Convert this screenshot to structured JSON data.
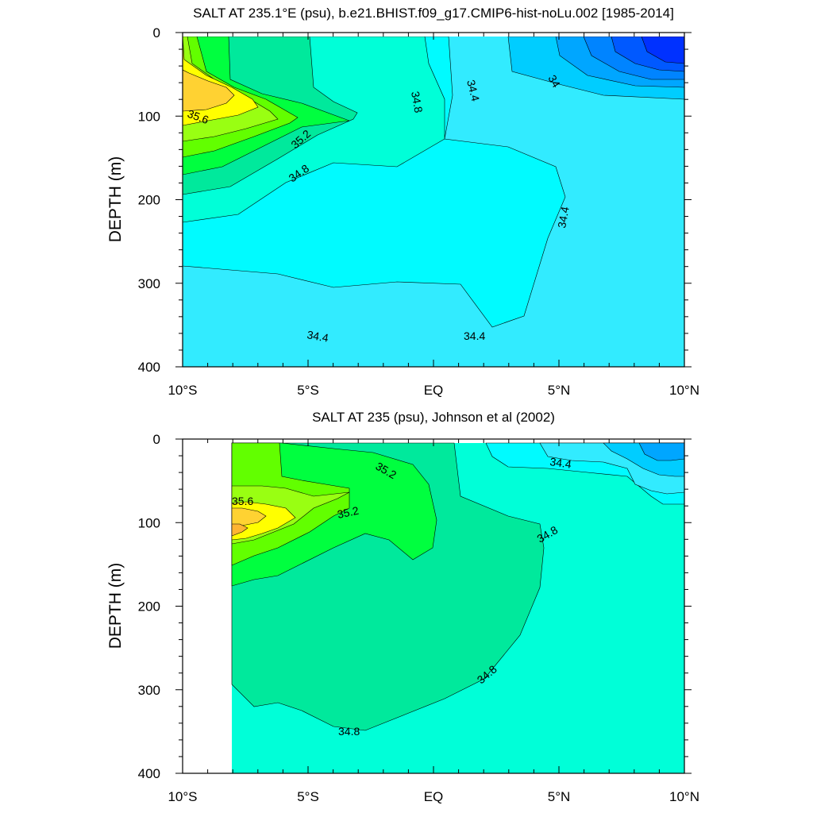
{
  "colors": {
    "s340": "#0031ff",
    "s341": "#0059ff",
    "s342": "#0084ff",
    "s343": "#00a6ff",
    "s344": "#00cdff",
    "s346": "#32ebff",
    "s348": "#00fbff",
    "s350": "#00ffd8",
    "s352": "#00e99c",
    "s354": "#00ff3f",
    "s356": "#62ff00",
    "s358": "#99ff12",
    "s360": "#ffff00",
    "s362": "#ffd232",
    "s364": "#ffb432"
  },
  "chart_data": [
    {
      "type": "contour",
      "title": "SALT AT 235.1°E (psu), b.e21.BHIST.f09_g17.CMIP6-hist-noLu.002 [1985-2014]",
      "ylabel": "DEPTH (m)",
      "xlabel": "",
      "x_range": [
        -10,
        10
      ],
      "y_range": [
        0,
        400
      ],
      "y_reversed": true,
      "x_ticks": [
        -10,
        -5,
        0,
        5,
        10
      ],
      "x_tick_labels": [
        "10°S",
        "5°S",
        "EQ",
        "5°N",
        "10°N"
      ],
      "y_ticks": [
        0,
        100,
        200,
        300,
        400
      ],
      "y_tick_labels": [
        "0",
        "100",
        "200",
        "300",
        "400"
      ],
      "contour_labels": [
        "35.6",
        "35.2",
        "34.8",
        "34.8",
        "34.4",
        "34",
        "34.4",
        "34.4",
        "34.4"
      ]
    },
    {
      "type": "contour",
      "title": "SALT AT 235 (psu), Johnson et al (2002)",
      "ylabel": "DEPTH (m)",
      "xlabel": "",
      "x_range": [
        -10,
        10
      ],
      "y_range": [
        0,
        400
      ],
      "y_reversed": true,
      "x_ticks": [
        -10,
        -5,
        0,
        5,
        10
      ],
      "x_tick_labels": [
        "10°S",
        "5°S",
        "EQ",
        "5°N",
        "10°N"
      ],
      "y_ticks": [
        0,
        100,
        200,
        300,
        400
      ],
      "y_tick_labels": [
        "0",
        "100",
        "200",
        "300",
        "400"
      ],
      "contour_labels": [
        "35.2",
        "35.6",
        "35.2",
        "34.4",
        "34.8",
        "34.8",
        "34.8"
      ]
    }
  ]
}
